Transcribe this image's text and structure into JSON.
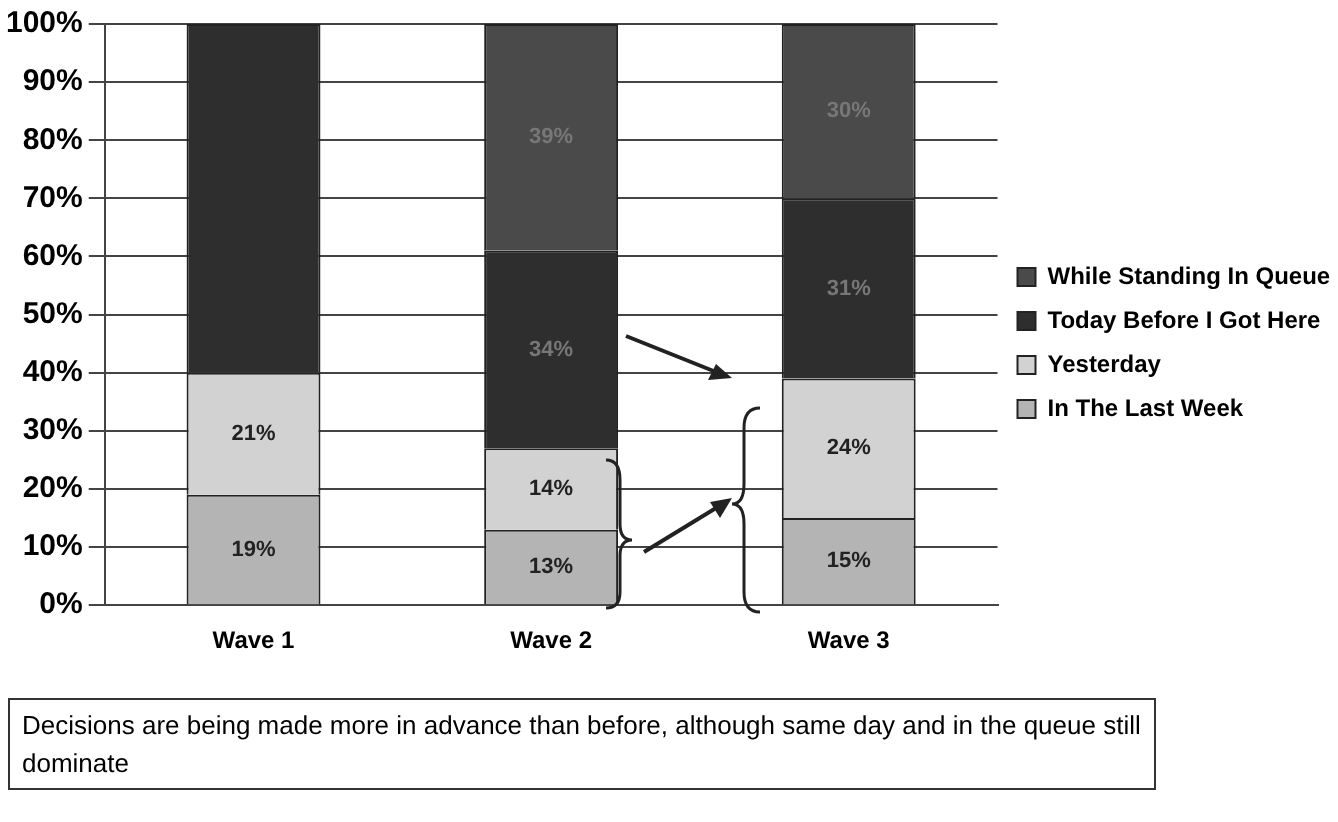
{
  "chart_data": {
    "type": "bar",
    "stacked": true,
    "categories": [
      "Wave 1",
      "Wave 2",
      "Wave 3"
    ],
    "series": [
      {
        "name": "In The Last Week",
        "color": "#b4b4b4",
        "values": [
          19,
          13,
          15
        ],
        "value_labels": [
          "19%",
          "13%",
          "15%"
        ]
      },
      {
        "name": "Yesterday",
        "color": "#d2d2d2",
        "values": [
          21,
          14,
          24
        ],
        "value_labels": [
          "21%",
          "14%",
          "24%"
        ]
      },
      {
        "name": "Today Before I Got Here",
        "color": "#2e2e2e",
        "values": [
          60,
          34,
          31
        ],
        "value_labels": [
          null,
          "34%",
          "31%"
        ]
      },
      {
        "name": "While Standing In Queue",
        "color": "#4a4a4a",
        "values": [
          null,
          39,
          30
        ],
        "value_labels": [
          null,
          "39%",
          "30%"
        ]
      }
    ],
    "ylim": [
      0,
      100
    ],
    "yticks": [
      {
        "value": 0,
        "label": "0%"
      },
      {
        "value": 10,
        "label": "10%"
      },
      {
        "value": 20,
        "label": "20%"
      },
      {
        "value": 30,
        "label": "30%"
      },
      {
        "value": 40,
        "label": "40%"
      },
      {
        "value": 50,
        "label": "50%"
      },
      {
        "value": 60,
        "label": "60%"
      },
      {
        "value": 70,
        "label": "70%"
      },
      {
        "value": 80,
        "label": "80%"
      },
      {
        "value": 90,
        "label": "90%"
      },
      {
        "value": 100,
        "label": "100%"
      }
    ],
    "grid": "y",
    "legend": "right",
    "annotations": [
      "Decisions are being made more in advance than before, although same day and in the queue still dominate"
    ]
  }
}
